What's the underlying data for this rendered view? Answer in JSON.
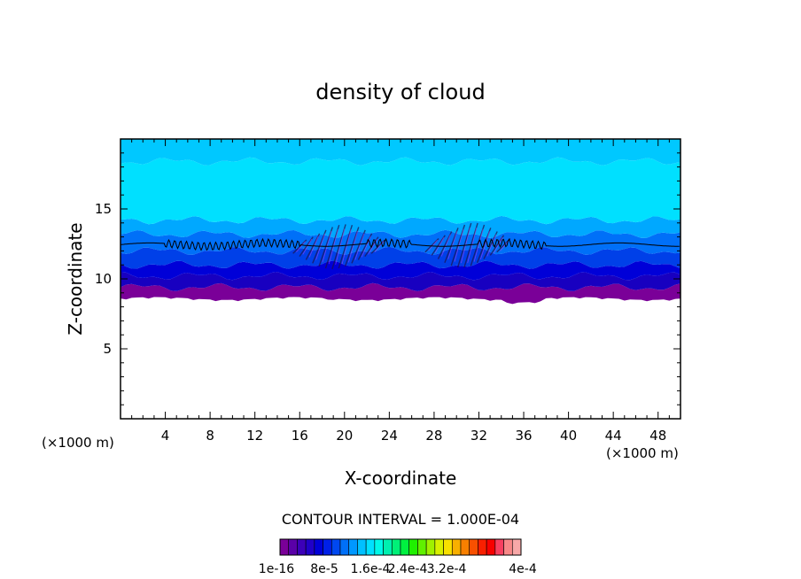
{
  "chart_data": {
    "type": "heatmap",
    "title": "density of cloud",
    "xlabel": "X-coordinate",
    "ylabel": "Z-coordinate",
    "x_unit_left": "(×1000 m)",
    "x_unit_right": "(×1000 m)",
    "xlim": [
      0,
      50
    ],
    "ylim": [
      0,
      20
    ],
    "x_ticks": [
      4,
      8,
      12,
      16,
      20,
      24,
      28,
      32,
      36,
      40,
      44,
      48
    ],
    "y_ticks": [
      5,
      10,
      15
    ],
    "contour_interval_text": "CONTOUR INTERVAL = 1.000E-04",
    "colorbar": {
      "tick_labels": [
        "1e-16",
        "8e-5",
        "1.6e-4",
        "2.4e-4",
        "3.2e-4",
        "4e-4"
      ],
      "colors": [
        "#7a0098",
        "#5a00a8",
        "#3c00b8",
        "#2000c8",
        "#0000d8",
        "#0020e8",
        "#0048f0",
        "#0070f8",
        "#0098ff",
        "#00c0ff",
        "#00e0ff",
        "#00f8e8",
        "#00f0b0",
        "#00f078",
        "#00f040",
        "#20f000",
        "#60f000",
        "#a0f000",
        "#d8f000",
        "#f8e000",
        "#f8b000",
        "#f88000",
        "#f85000",
        "#f82000",
        "#f80000",
        "#f84060",
        "#f88888",
        "#f8a8a8"
      ]
    },
    "layers": [
      {
        "zmin": 8.6,
        "zmax": 9.4,
        "color": "#7a0098"
      },
      {
        "zmin": 9.4,
        "zmax": 10.2,
        "color": "#1800c0"
      },
      {
        "zmin": 10.2,
        "zmax": 11.0,
        "color": "#0000d8"
      },
      {
        "zmin": 11.0,
        "zmax": 12.0,
        "color": "#0040e8"
      },
      {
        "zmin": 12.0,
        "zmax": 13.2,
        "color": "#0070f8"
      },
      {
        "zmin": 13.2,
        "zmax": 14.2,
        "color": "#00a8ff"
      },
      {
        "zmin": 14.2,
        "zmax": 18.4,
        "color": "#00e0ff"
      },
      {
        "zmin": 18.4,
        "zmax": 20.0,
        "color": "#00c8ff"
      }
    ],
    "contour_line_z": 12.6
  }
}
